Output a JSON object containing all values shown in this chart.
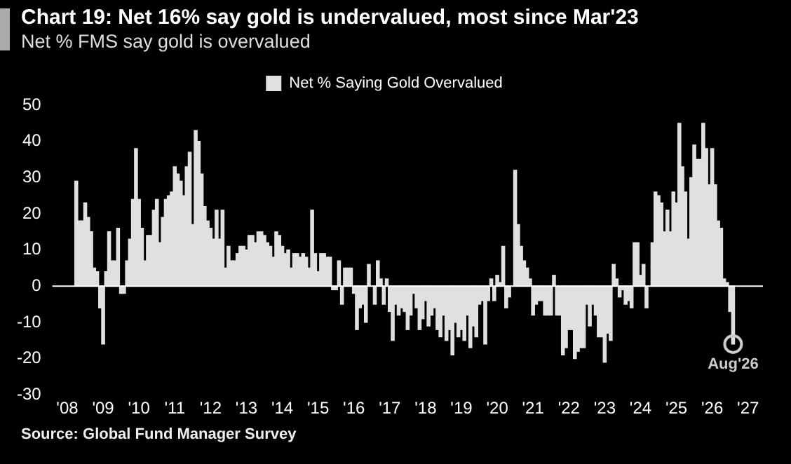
{
  "chart_data": {
    "type": "bar",
    "title": "Chart 19: Net 16% say gold is undervalued, most since Mar'23",
    "subtitle": "Net % FMS say gold is overvalued",
    "x": [
      "2008-04",
      "2008-05",
      "2008-06",
      "2008-07",
      "2008-08",
      "2008-09",
      "2008-10",
      "2008-11",
      "2008-12",
      "2009-01",
      "2009-02",
      "2009-03",
      "2009-04",
      "2009-05",
      "2009-06",
      "2009-07",
      "2009-08",
      "2009-09",
      "2009-10",
      "2009-11",
      "2009-12",
      "2010-01",
      "2010-02",
      "2010-03",
      "2010-04",
      "2010-05",
      "2010-06",
      "2010-07",
      "2010-08",
      "2010-09",
      "2010-10",
      "2010-11",
      "2010-12",
      "2011-01",
      "2011-02",
      "2011-03",
      "2011-04",
      "2011-05",
      "2011-06",
      "2011-07",
      "2011-08",
      "2011-09",
      "2011-10",
      "2011-11",
      "2011-12",
      "2012-01",
      "2012-02",
      "2012-03",
      "2012-04",
      "2012-05",
      "2012-06",
      "2012-07",
      "2012-08",
      "2012-09",
      "2012-10",
      "2012-11",
      "2012-12",
      "2013-01",
      "2013-02",
      "2013-03",
      "2013-04",
      "2013-05",
      "2013-06",
      "2013-07",
      "2013-08",
      "2013-09",
      "2013-10",
      "2013-11",
      "2013-12",
      "2014-01",
      "2014-02",
      "2014-03",
      "2014-04",
      "2014-05",
      "2014-06",
      "2014-07",
      "2014-08",
      "2014-09",
      "2014-10",
      "2014-11",
      "2014-12",
      "2015-01",
      "2015-02",
      "2015-03",
      "2015-04",
      "2015-05",
      "2015-06",
      "2015-07",
      "2015-08",
      "2015-09",
      "2015-10",
      "2015-11",
      "2015-12",
      "2016-01",
      "2016-02",
      "2016-03",
      "2016-04",
      "2016-05",
      "2016-06",
      "2016-07",
      "2016-08",
      "2016-09",
      "2016-10",
      "2016-11",
      "2016-12",
      "2017-01",
      "2017-02",
      "2017-03",
      "2017-04",
      "2017-05",
      "2017-06",
      "2017-07",
      "2017-08",
      "2017-09",
      "2017-10",
      "2017-11",
      "2017-12",
      "2018-01",
      "2018-02",
      "2018-03",
      "2018-04",
      "2018-05",
      "2018-06",
      "2018-07",
      "2018-08",
      "2018-09",
      "2018-10",
      "2018-11",
      "2018-12",
      "2019-01",
      "2019-02",
      "2019-03",
      "2019-04",
      "2019-05",
      "2019-06",
      "2019-07",
      "2019-08",
      "2019-09",
      "2019-10",
      "2019-11",
      "2019-12",
      "2020-01",
      "2020-02",
      "2020-03",
      "2020-04",
      "2020-05",
      "2020-06",
      "2020-07",
      "2020-08",
      "2020-09",
      "2020-10",
      "2020-11",
      "2020-12",
      "2021-01",
      "2021-02",
      "2021-03",
      "2021-04",
      "2021-05",
      "2021-06",
      "2021-07",
      "2021-08",
      "2021-09",
      "2021-10",
      "2021-11",
      "2021-12",
      "2022-01",
      "2022-02",
      "2022-03",
      "2022-04",
      "2022-05",
      "2022-06",
      "2022-07",
      "2022-08",
      "2022-09",
      "2022-10",
      "2022-11",
      "2022-12",
      "2023-01",
      "2023-02",
      "2023-03",
      "2023-04",
      "2023-05",
      "2023-06",
      "2023-07",
      "2023-08",
      "2023-09",
      "2023-10",
      "2023-11",
      "2023-12",
      "2024-01",
      "2024-02",
      "2024-03",
      "2024-04",
      "2024-05",
      "2024-06",
      "2024-07",
      "2024-08",
      "2024-09",
      "2024-10",
      "2024-11",
      "2024-12",
      "2025-01",
      "2025-02",
      "2025-03",
      "2025-04",
      "2025-05",
      "2025-06",
      "2025-07",
      "2025-08",
      "2025-09",
      "2025-10",
      "2025-11",
      "2025-12",
      "2026-01",
      "2026-02",
      "2026-03",
      "2026-04",
      "2026-05",
      "2026-06",
      "2026-07",
      "2026-08"
    ],
    "series": [
      {
        "name": "Net % Saying Gold Overvalued",
        "color": "#e0e0e0",
        "values": [
          29,
          18,
          18,
          23,
          19,
          15,
          5,
          4,
          -6,
          -16,
          4,
          15,
          7,
          7,
          16,
          -2,
          -2,
          7,
          13,
          24,
          38,
          24,
          16,
          7,
          14,
          14,
          21,
          24,
          12,
          19,
          24,
          25,
          26,
          33,
          31,
          29,
          25,
          33,
          37,
          17,
          43,
          40,
          31,
          22,
          18,
          16,
          13,
          21,
          13,
          21,
          5,
          11,
          7,
          7,
          9,
          11,
          11,
          10,
          14,
          14,
          12,
          15,
          15,
          14,
          12,
          11,
          8,
          15,
          14,
          11,
          9,
          10,
          5,
          9,
          9,
          8,
          9,
          8,
          5,
          21,
          9,
          4,
          9,
          9,
          8,
          8,
          -1,
          -1,
          7,
          -5,
          5,
          5,
          5,
          -2,
          -12,
          -6,
          -5,
          -10,
          6,
          0,
          -5,
          7,
          2,
          -5,
          2,
          -7,
          -15,
          -5,
          -8,
          -6,
          -7,
          -12,
          -8,
          -2,
          -6,
          -12,
          -9,
          -4,
          -11,
          -8,
          -6,
          -12,
          -14,
          -8,
          -15,
          -12,
          -19,
          -10,
          -14,
          -12,
          -15,
          -8,
          -17,
          -11,
          -14,
          -5,
          -4,
          -16,
          -4,
          2,
          -4,
          3,
          1,
          11,
          -6,
          -3,
          0,
          32,
          17,
          11,
          7,
          5,
          2,
          -8,
          -5,
          -4,
          -4,
          -8,
          -8,
          -8,
          3,
          -8,
          -8,
          -19,
          -17,
          -12,
          -12,
          -20,
          -18,
          -17,
          -17,
          -5,
          -11,
          -5,
          -8,
          -14,
          -14,
          -21,
          -13,
          -15,
          6,
          2,
          -3,
          -1,
          -5,
          -4,
          -6,
          12,
          12,
          3,
          6,
          -6,
          0,
          12,
          26,
          25,
          23,
          15,
          21,
          15,
          26,
          23,
          45,
          33,
          26,
          13,
          30,
          39,
          35,
          35,
          45,
          38,
          28,
          38,
          28,
          18,
          16,
          2,
          1,
          -7,
          -16
        ]
      }
    ],
    "xlim": [
      "2007-08",
      "2027-06"
    ],
    "xticks": [
      {
        "value": "2008",
        "label": "'08"
      },
      {
        "value": "2009",
        "label": "'09"
      },
      {
        "value": "2010",
        "label": "'10"
      },
      {
        "value": "2011",
        "label": "'11"
      },
      {
        "value": "2012",
        "label": "'12"
      },
      {
        "value": "2013",
        "label": "'13"
      },
      {
        "value": "2014",
        "label": "'14"
      },
      {
        "value": "2015",
        "label": "'15"
      },
      {
        "value": "2016",
        "label": "'16"
      },
      {
        "value": "2017",
        "label": "'17"
      },
      {
        "value": "2018",
        "label": "'18"
      },
      {
        "value": "2019",
        "label": "'19"
      },
      {
        "value": "2020",
        "label": "'20"
      },
      {
        "value": "2021",
        "label": "'21"
      },
      {
        "value": "2022",
        "label": "'22"
      },
      {
        "value": "2023",
        "label": "'23"
      },
      {
        "value": "2024",
        "label": "'24"
      },
      {
        "value": "2025",
        "label": "'25"
      },
      {
        "value": "2026",
        "label": "'26"
      },
      {
        "value": "2027",
        "label": "'27"
      }
    ],
    "ref_lines": [
      {
        "axis": "y",
        "value": 0,
        "color": "#ffffff"
      }
    ],
    "ylim": [
      -30,
      50
    ],
    "yticks": [
      -30,
      -20,
      -10,
      0,
      10,
      20,
      30,
      40,
      50
    ],
    "grid": false,
    "legend": "top",
    "annotations": [
      {
        "text": "Aug'26",
        "x": "2026-08",
        "y": -16
      },
      "Source: Global Fund Manager Survey"
    ]
  }
}
